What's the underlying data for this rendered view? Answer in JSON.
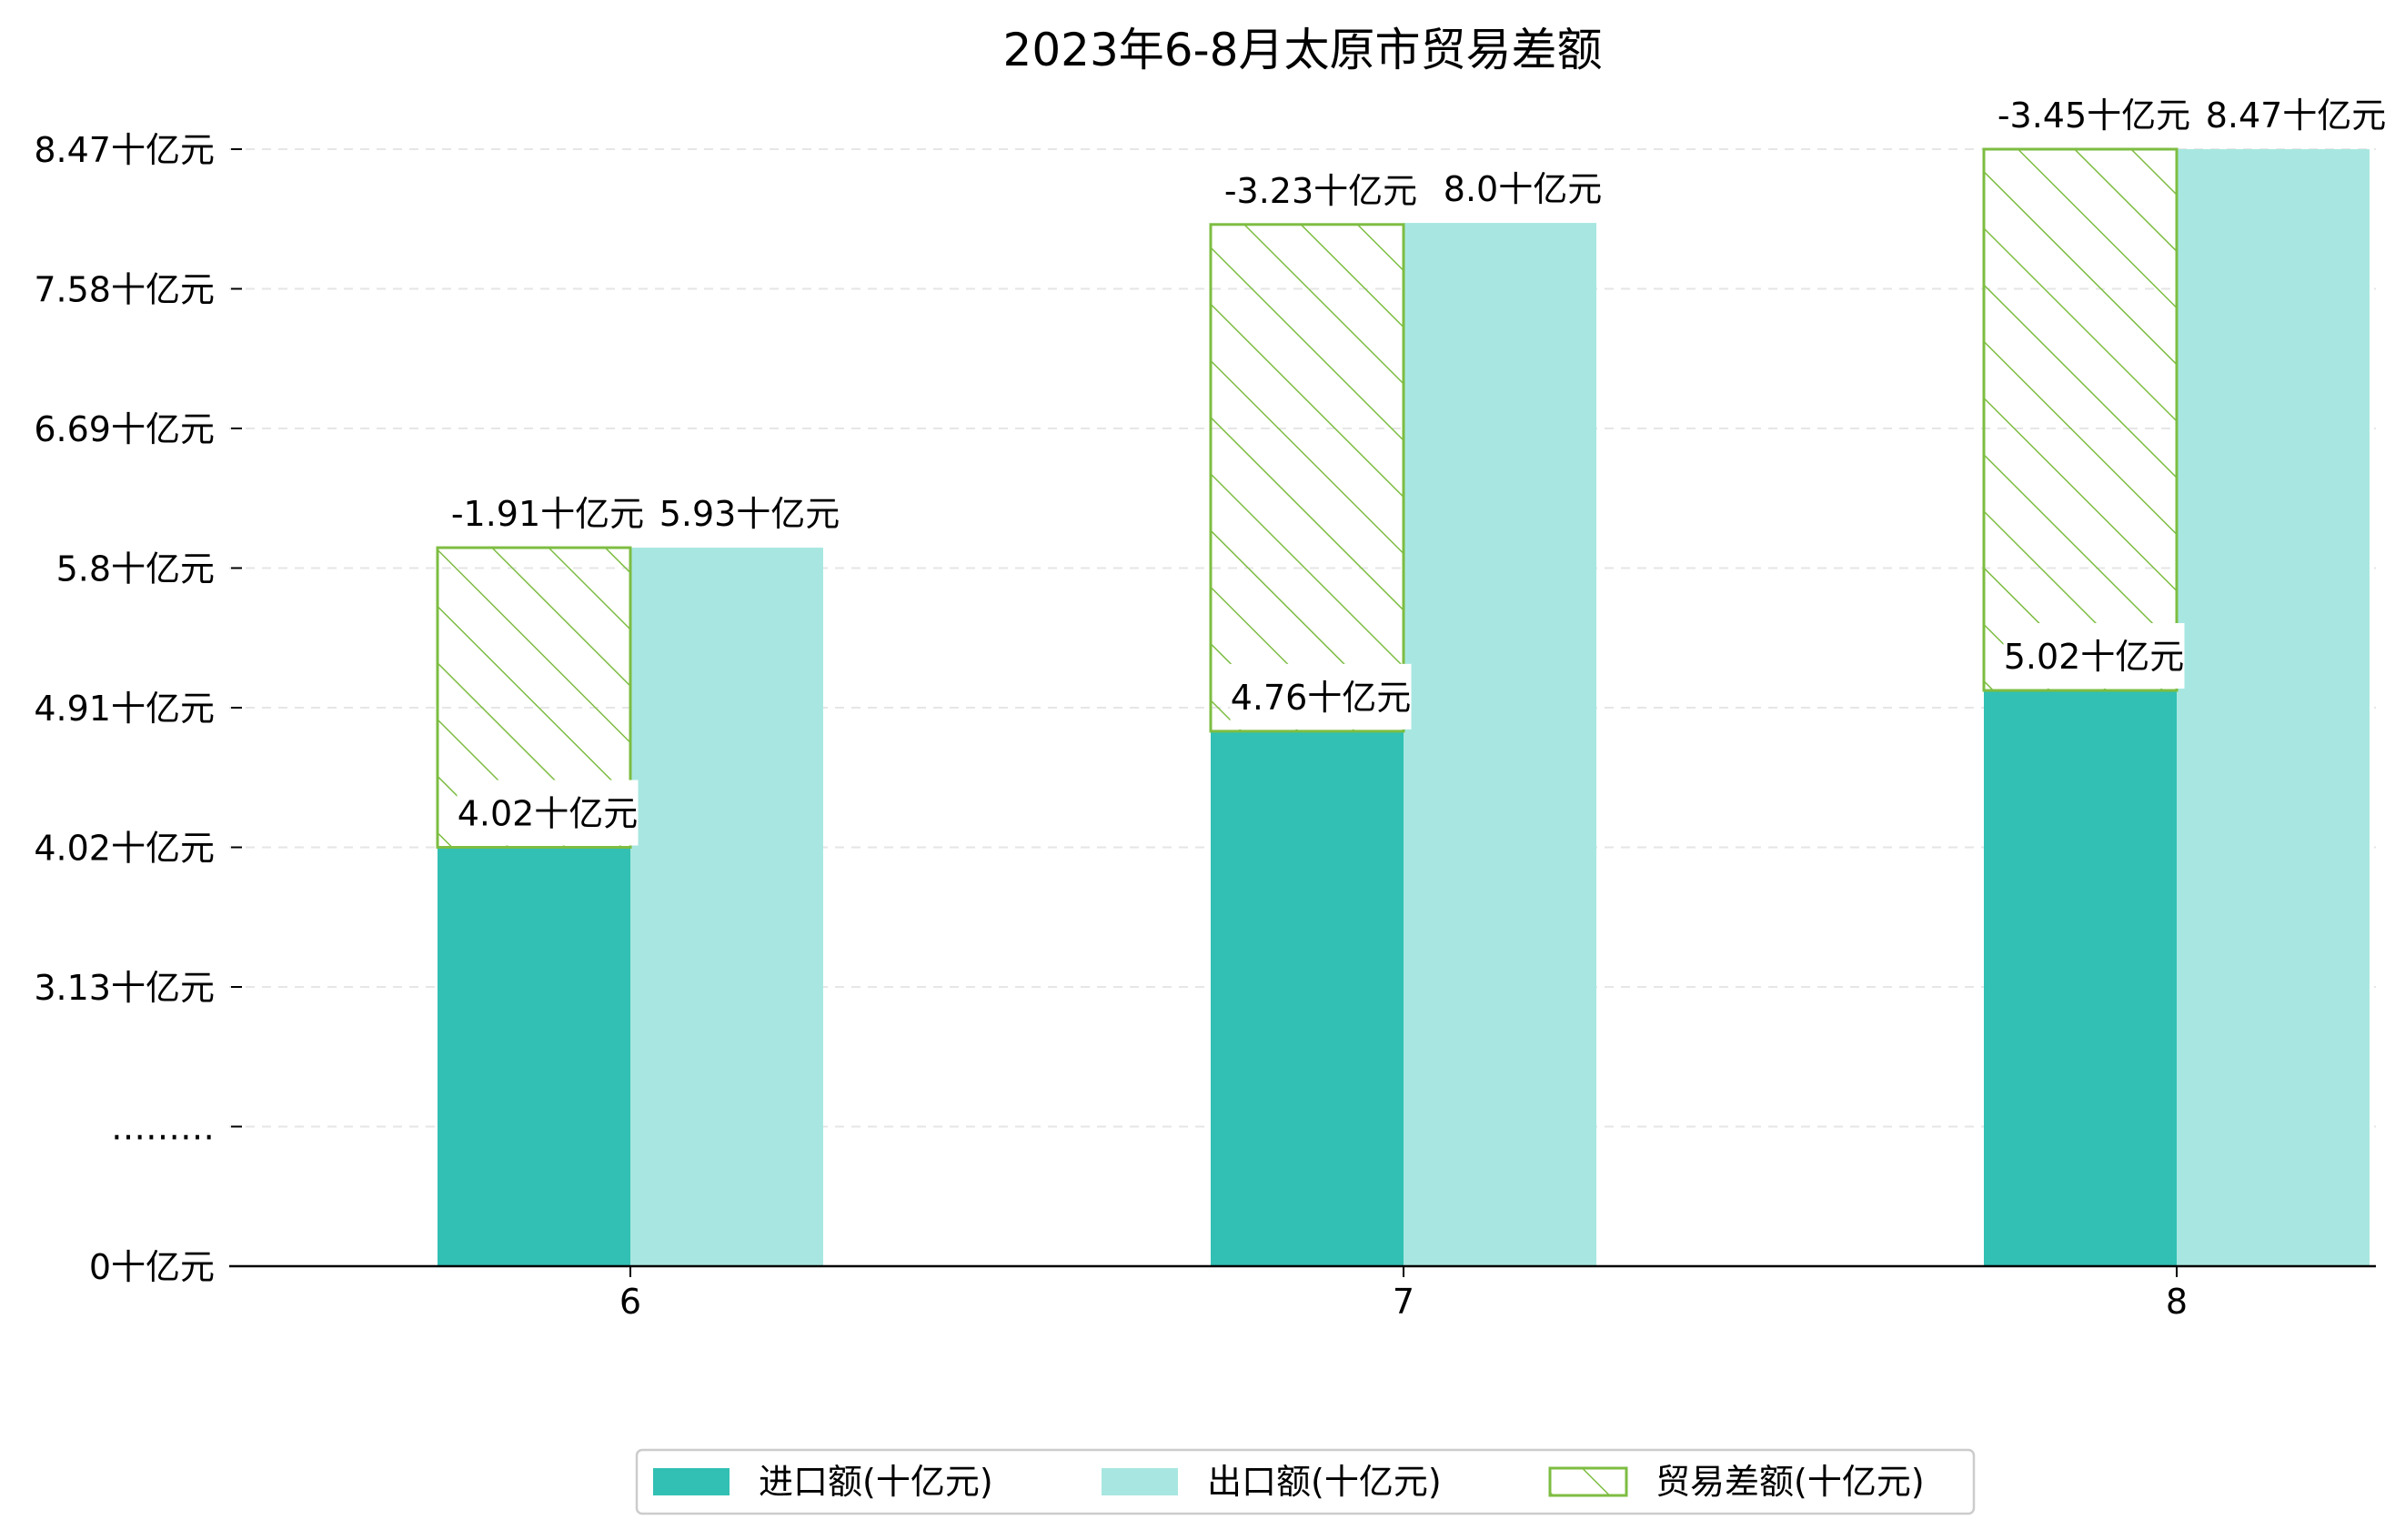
{
  "chart_data": {
    "type": "bar",
    "title": "2023年6-8月太原市贸易差额",
    "xlabel": "",
    "ylabel": "",
    "categories": [
      "6",
      "7",
      "8"
    ],
    "series": [
      {
        "name": "进口额(十亿元)",
        "values": [
          4.02,
          4.76,
          5.02
        ],
        "color": "#31c0b3"
      },
      {
        "name": "出口额(十亿元)",
        "values": [
          5.93,
          8.0,
          8.47
        ],
        "color": "#a8e7e1"
      },
      {
        "name": "贸易差额(十亿元)",
        "values": [
          -1.91,
          -3.23,
          -3.45
        ],
        "color": "#7dbd42",
        "style": "hatched"
      }
    ],
    "bar_labels": {
      "import": [
        "4.02十亿元",
        "4.76十亿元",
        "5.02十亿元"
      ],
      "export": [
        "5.93十亿元",
        "8.0十亿元",
        "8.47十亿元"
      ],
      "balance": [
        "-1.91十亿元",
        "-3.23十亿元",
        "-3.45十亿元"
      ]
    },
    "y_ticks": [
      {
        "value": 0,
        "label": "0十亿元"
      },
      {
        "value": 1.35,
        "label": "………"
      },
      {
        "value": 3.13,
        "label": "3.13十亿元"
      },
      {
        "value": 4.02,
        "label": "4.02十亿元"
      },
      {
        "value": 4.91,
        "label": "4.91十亿元"
      },
      {
        "value": 5.8,
        "label": "5.8十亿元"
      },
      {
        "value": 6.69,
        "label": "6.69十亿元"
      },
      {
        "value": 7.58,
        "label": "7.58十亿元"
      },
      {
        "value": 8.47,
        "label": "8.47十亿元"
      }
    ],
    "ylim": [
      0,
      8.47
    ],
    "axis_break": true,
    "grid": "horizontal-dashed",
    "legend_position": "bottom-center"
  }
}
